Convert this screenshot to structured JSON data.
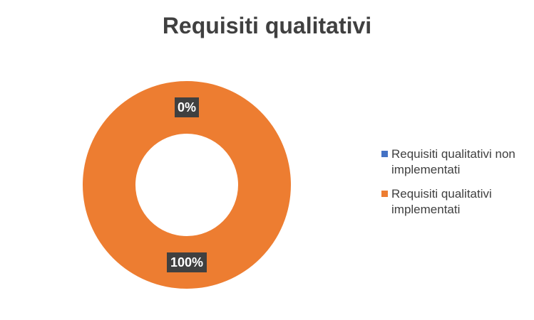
{
  "chart_data": {
    "type": "pie",
    "donut": true,
    "title": "Requisiti qualitativi",
    "categories": [
      "Requisiti qualitativi non implementati",
      "Requisiti qualitativi implementati"
    ],
    "values": [
      0,
      100
    ],
    "data_labels": [
      "0%",
      "100%"
    ],
    "colors": [
      "#4472C4",
      "#ED7D31"
    ],
    "legend_position": "right"
  }
}
